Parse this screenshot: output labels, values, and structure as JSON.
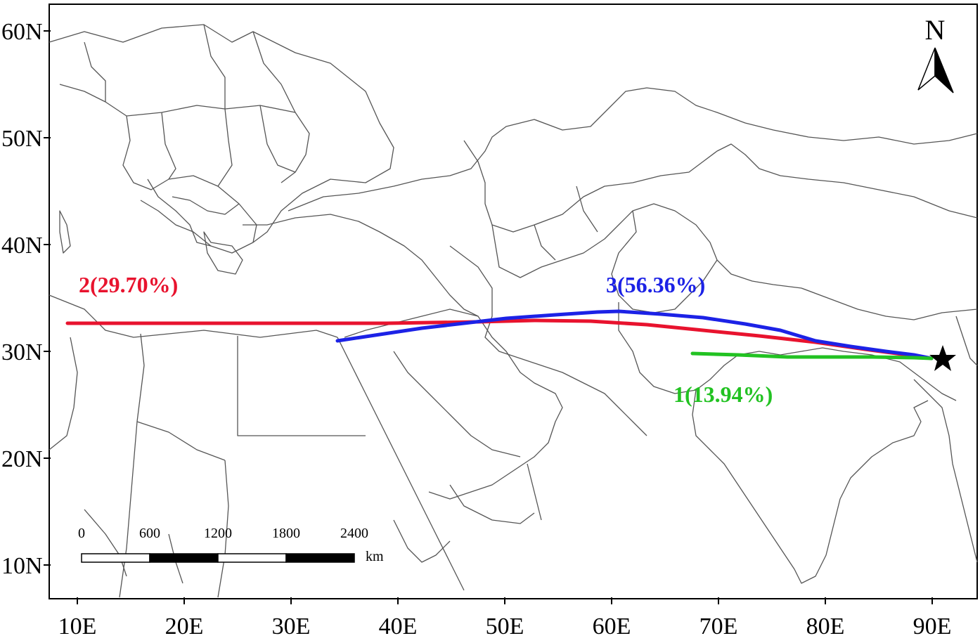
{
  "map": {
    "x_ticks": [
      "10E",
      "20E",
      "30E",
      "40E",
      "50E",
      "60E",
      "70E",
      "80E",
      "90E"
    ],
    "y_ticks": [
      "60N",
      "50N",
      "40N",
      "30N",
      "20N",
      "10N"
    ],
    "north_label": "N",
    "station_marker": "star",
    "scale_bar": {
      "labels": [
        "0",
        "600",
        "1200",
        "1800",
        "2400"
      ],
      "unit": "km"
    },
    "routes": [
      {
        "label": "1(13.94%)",
        "color": "#22c222",
        "percent": 13.94
      },
      {
        "label": "2(29.70%)",
        "color": "#e8132e",
        "percent": 29.7
      },
      {
        "label": "3(56.36%)",
        "color": "#1c22e6",
        "percent": 56.36
      }
    ]
  }
}
